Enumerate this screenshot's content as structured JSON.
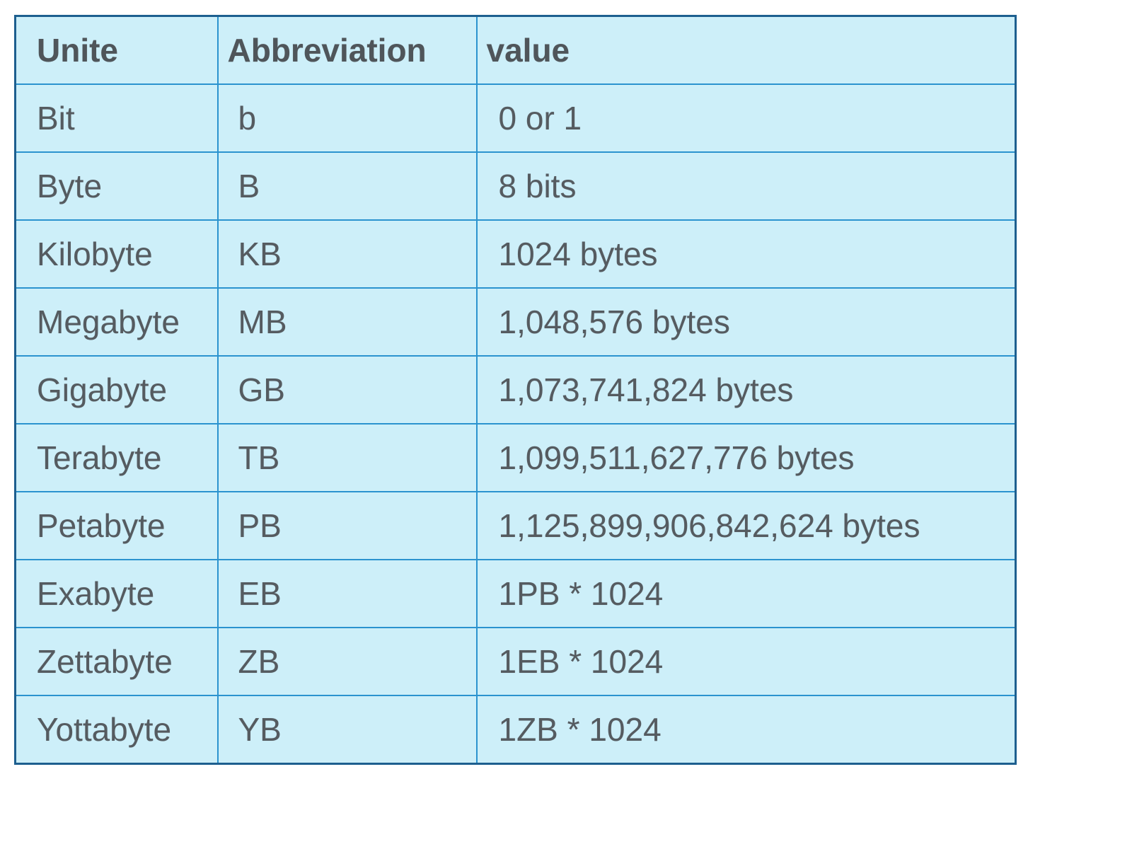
{
  "table": {
    "header": [
      "Unite",
      "Abbreviation",
      "value"
    ],
    "rows": [
      [
        "Bit",
        "b",
        "0 or 1"
      ],
      [
        "Byte",
        "B",
        "8 bits"
      ],
      [
        "Kilobyte",
        "KB",
        "1024 bytes"
      ],
      [
        "Megabyte",
        "MB",
        "1,048,576 bytes"
      ],
      [
        "Gigabyte",
        "GB",
        "1,073,741,824 bytes"
      ],
      [
        "Terabyte",
        "TB",
        "1,099,511,627,776 bytes"
      ],
      [
        "Petabyte",
        "PB",
        "1,125,899,906,842,624 bytes"
      ],
      [
        "Exabyte",
        "EB",
        "1PB * 1024"
      ],
      [
        "Zettabyte",
        "ZB",
        "1EB * 1024"
      ],
      [
        "Yottabyte",
        "YB",
        "1ZB * 1024"
      ]
    ]
  }
}
